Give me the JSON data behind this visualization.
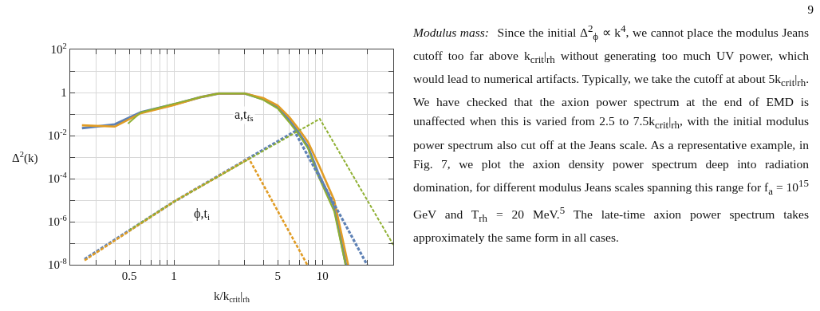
{
  "chart_data": {
    "type": "line",
    "xlabel": "k/k$_{crit}$|$_{rh}$",
    "ylabel": "Δ$^{2}$(k)",
    "log": "xy",
    "grid": true,
    "marker": "none",
    "xlim": [
      0.2,
      30
    ],
    "ylim": [
      1e-08,
      100
    ],
    "xticks": [
      {
        "value": 0.3,
        "label": null
      },
      {
        "value": 0.4,
        "label": null
      },
      0.5,
      {
        "value": 0.6,
        "label": null
      },
      {
        "value": 0.7,
        "label": null
      },
      {
        "value": 0.8,
        "label": null
      },
      {
        "value": 0.9,
        "label": null
      },
      1,
      {
        "value": 2,
        "label": null
      },
      {
        "value": 3,
        "label": null
      },
      {
        "value": 4,
        "label": null
      },
      5,
      {
        "value": 6,
        "label": null
      },
      {
        "value": 7,
        "label": null
      },
      {
        "value": 8,
        "label": null
      },
      {
        "value": 9,
        "label": null
      },
      10,
      {
        "value": 20,
        "label": null
      }
    ],
    "yticks": [
      {
        "value": 1e-08,
        "label": "10$^{-8}$"
      },
      {
        "value": 1e-07,
        "label": null
      },
      {
        "value": 1e-06,
        "label": "10$^{-6}$"
      },
      {
        "value": 1e-05,
        "label": null
      },
      {
        "value": 0.0001,
        "label": "10$^{-4}$"
      },
      {
        "value": 0.001,
        "label": null
      },
      {
        "value": 0.01,
        "label": "10$^{-2}$"
      },
      {
        "value": 0.1,
        "label": null
      },
      1,
      {
        "value": 10,
        "label": null
      },
      {
        "value": 100,
        "label": "10$^{2}$"
      }
    ],
    "series": [
      {
        "color": "#5e81b5",
        "line_style": "solid",
        "x": [
          0.24,
          0.4,
          0.6,
          1,
          1.5,
          2,
          3,
          4,
          5,
          6,
          7,
          8,
          9.3,
          12,
          14.4
        ],
        "values": [
          0.022,
          0.033,
          0.12,
          0.28,
          0.6,
          0.9,
          0.9,
          0.5,
          0.2,
          0.05,
          0.012,
          0.003,
          0.0002,
          5e-06,
          1e-08
        ]
      },
      {
        "color": "#e19c24",
        "line_style": "solid",
        "x": [
          0.24,
          0.4,
          0.6,
          1,
          1.5,
          2,
          3,
          4,
          5,
          6,
          7,
          8,
          9.5,
          12,
          14.9
        ],
        "values": [
          0.03,
          0.026,
          0.11,
          0.26,
          0.6,
          0.9,
          0.9,
          0.55,
          0.25,
          0.07,
          0.018,
          0.005,
          0.0004,
          1e-05,
          1e-08
        ]
      },
      {
        "color": "#8fb032",
        "line_style": "solid",
        "x": [
          0.49,
          0.6,
          1,
          1.5,
          2,
          3,
          4,
          5,
          6,
          7,
          8,
          9.3,
          12,
          14.3
        ],
        "values": [
          0.036,
          0.12,
          0.3,
          0.6,
          0.9,
          0.9,
          0.45,
          0.18,
          0.04,
          0.01,
          0.0025,
          0.00015,
          3e-06,
          1e-08
        ]
      },
      {
        "color": "#5e81b5",
        "line_style": "dashed",
        "x": [
          0.25,
          1,
          6.5,
          20
        ],
        "values": [
          1.8e-08,
          8.5e-06,
          0.0155,
          1e-08
        ]
      },
      {
        "color": "#e19c24",
        "line_style": "dashed",
        "x": [
          0.25,
          1,
          3.2,
          7.9
        ],
        "values": [
          1.6e-08,
          8.5e-06,
          0.00085,
          1e-08
        ]
      },
      {
        "color": "#8fb032",
        "line_style": "dashed",
        "x": [
          0.5,
          1,
          9.6,
          30
        ],
        "values": [
          4e-07,
          8.5e-06,
          0.06,
          8.5e-08
        ]
      }
    ],
    "annotations": [
      {
        "text": "a,t$_{fs}$",
        "x": 2.44,
        "y": 0.9
      },
      {
        "text": "ϕ,t$_{i}$",
        "x": 1.3,
        "y": 2.4e-05
      },
      "9",
      "Modulus mass:",
      "Since the initial Δ$^{2}$$_{ϕ}$ ∝ k$^{4}$, we cannot place the modulus Jeans cutoff too far above k$_{crit}$|$_{rh}$ without generating too much UV power, which would lead to numerical artifacts. Typically, we take the cutoff at about 5k$_{crit}$|$_{rh}$. We have checked that the axion power spectrum at the end of EMD is unaffected when this is varied from 2.5 to 7.5k$_{crit}$|$_{rh}$, with the initial modulus power spectrum also cut off at the Jeans scale. As a representative example, in Fig. 7, we plot the axion density power spectrum deep into radiation domination, for different modulus Jeans scales spanning this range for f$_{a}$ = 10$^{15}$ GeV and T$_{rh}$ = 20 MeV.$^{5}$ The late-time axion power spectrum takes approximately the same form in all cases."
    ]
  }
}
